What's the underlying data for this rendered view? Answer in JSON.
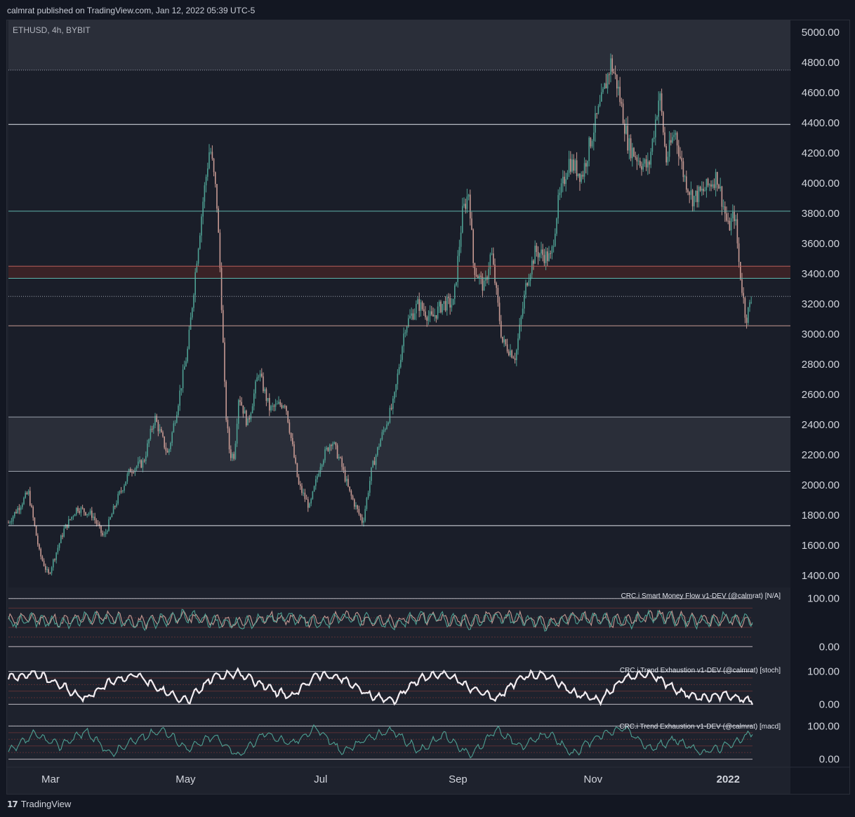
{
  "header": {
    "published": "calmrat published on TradingView.com, Jan 12, 2022 05:39 UTC-5"
  },
  "footer": {
    "brand": "TradingView",
    "logo": "tv-logo-icon"
  },
  "colors": {
    "background": "#131722",
    "pane": "#1e222d",
    "up_candle": "#4e9f92",
    "down_candle": "#c79a93",
    "level_white": "#e0e3eb",
    "level_teal": "#5fb3aa",
    "level_red": "#b85c58",
    "stoch_line": "#f3eef2",
    "macd_line": "#4e9f92"
  },
  "chart_data": [
    {
      "type": "candlestick",
      "symbol_label": "ETHUSD, 4h, BYBIT",
      "x_ticks": [
        "Mar",
        "May",
        "Jul",
        "Sep",
        "Nov",
        "2022"
      ],
      "y_ticks": [
        "5000.00",
        "4800.00",
        "4600.00",
        "4400.00",
        "4200.00",
        "4000.00",
        "3800.00",
        "3600.00",
        "3400.00",
        "3200.00",
        "3000.00",
        "2800.00",
        "2600.00",
        "2400.00",
        "2200.00",
        "2000.00",
        "1800.00",
        "1600.00",
        "1400.00"
      ],
      "y_tick_values": [
        5000,
        4800,
        4600,
        4400,
        4200,
        4000,
        3800,
        3600,
        3400,
        3200,
        3000,
        2800,
        2600,
        2400,
        2200,
        2000,
        1800,
        1600,
        1400
      ],
      "ylim": [
        1320,
        5080
      ],
      "price_path": [
        {
          "d": "2021-02-10",
          "p": 1750
        },
        {
          "d": "2021-02-19",
          "p": 1950
        },
        {
          "d": "2021-02-24",
          "p": 1550
        },
        {
          "d": "2021-02-28",
          "p": 1400
        },
        {
          "d": "2021-03-07",
          "p": 1700
        },
        {
          "d": "2021-03-13",
          "p": 1850
        },
        {
          "d": "2021-03-20",
          "p": 1800
        },
        {
          "d": "2021-03-25",
          "p": 1650
        },
        {
          "d": "2021-03-31",
          "p": 1900
        },
        {
          "d": "2021-04-06",
          "p": 2100
        },
        {
          "d": "2021-04-12",
          "p": 2150
        },
        {
          "d": "2021-04-17",
          "p": 2450
        },
        {
          "d": "2021-04-23",
          "p": 2200
        },
        {
          "d": "2021-04-27",
          "p": 2500
        },
        {
          "d": "2021-05-02",
          "p": 2900
        },
        {
          "d": "2021-05-06",
          "p": 3500
        },
        {
          "d": "2021-05-09",
          "p": 3900
        },
        {
          "d": "2021-05-12",
          "p": 4250
        },
        {
          "d": "2021-05-15",
          "p": 3900
        },
        {
          "d": "2021-05-17",
          "p": 3300
        },
        {
          "d": "2021-05-19",
          "p": 2500
        },
        {
          "d": "2021-05-21",
          "p": 2200
        },
        {
          "d": "2021-05-23",
          "p": 2200
        },
        {
          "d": "2021-05-25",
          "p": 2600
        },
        {
          "d": "2021-05-29",
          "p": 2400
        },
        {
          "d": "2021-06-03",
          "p": 2750
        },
        {
          "d": "2021-06-08",
          "p": 2500
        },
        {
          "d": "2021-06-15",
          "p": 2550
        },
        {
          "d": "2021-06-21",
          "p": 2000
        },
        {
          "d": "2021-06-26",
          "p": 1850
        },
        {
          "d": "2021-07-01",
          "p": 2150
        },
        {
          "d": "2021-07-06",
          "p": 2300
        },
        {
          "d": "2021-07-10",
          "p": 2150
        },
        {
          "d": "2021-07-14",
          "p": 1950
        },
        {
          "d": "2021-07-20",
          "p": 1750
        },
        {
          "d": "2021-07-24",
          "p": 2100
        },
        {
          "d": "2021-07-28",
          "p": 2300
        },
        {
          "d": "2021-08-03",
          "p": 2550
        },
        {
          "d": "2021-08-08",
          "p": 3050
        },
        {
          "d": "2021-08-14",
          "p": 3200
        },
        {
          "d": "2021-08-20",
          "p": 3100
        },
        {
          "d": "2021-08-25",
          "p": 3200
        },
        {
          "d": "2021-08-30",
          "p": 3200
        },
        {
          "d": "2021-09-03",
          "p": 3800
        },
        {
          "d": "2021-09-06",
          "p": 3950
        },
        {
          "d": "2021-09-08",
          "p": 3450
        },
        {
          "d": "2021-09-13",
          "p": 3300
        },
        {
          "d": "2021-09-16",
          "p": 3550
        },
        {
          "d": "2021-09-21",
          "p": 2950
        },
        {
          "d": "2021-09-27",
          "p": 2850
        },
        {
          "d": "2021-10-02",
          "p": 3350
        },
        {
          "d": "2021-10-06",
          "p": 3550
        },
        {
          "d": "2021-10-13",
          "p": 3500
        },
        {
          "d": "2021-10-16",
          "p": 3850
        },
        {
          "d": "2021-10-21",
          "p": 4150
        },
        {
          "d": "2021-10-27",
          "p": 4050
        },
        {
          "d": "2021-11-01",
          "p": 4350
        },
        {
          "d": "2021-11-05",
          "p": 4550
        },
        {
          "d": "2021-11-09",
          "p": 4800
        },
        {
          "d": "2021-11-12",
          "p": 4650
        },
        {
          "d": "2021-11-17",
          "p": 4250
        },
        {
          "d": "2021-11-22",
          "p": 4150
        },
        {
          "d": "2021-11-26",
          "p": 4100
        },
        {
          "d": "2021-12-01",
          "p": 4600
        },
        {
          "d": "2021-12-04",
          "p": 4150
        },
        {
          "d": "2021-12-08",
          "p": 4350
        },
        {
          "d": "2021-12-12",
          "p": 4050
        },
        {
          "d": "2021-12-16",
          "p": 3900
        },
        {
          "d": "2021-12-21",
          "p": 3950
        },
        {
          "d": "2021-12-27",
          "p": 4050
        },
        {
          "d": "2022-01-01",
          "p": 3700
        },
        {
          "d": "2022-01-04",
          "p": 3800
        },
        {
          "d": "2022-01-06",
          "p": 3450
        },
        {
          "d": "2022-01-09",
          "p": 3100
        },
        {
          "d": "2022-01-12",
          "p": 3250
        }
      ],
      "levels": [
        {
          "price": 4750,
          "color": "#9aa0ab",
          "style": "dotted"
        },
        {
          "price": 4390,
          "color": "#e0e3eb",
          "style": "solid"
        },
        {
          "price": 3815,
          "color": "#5fb3aa",
          "style": "solid"
        },
        {
          "price": 3450,
          "color": "#b85c58",
          "style": "solid"
        },
        {
          "price": 3370,
          "color": "#5fb3aa",
          "style": "solid"
        },
        {
          "price": 3250,
          "color": "#9aa0ab",
          "style": "dotted"
        },
        {
          "price": 3055,
          "color": "#c79a93",
          "style": "solid"
        },
        {
          "price": 2450,
          "color": "#9aa0ab",
          "style": "solid"
        },
        {
          "price": 2090,
          "color": "#9aa0ab",
          "style": "solid"
        },
        {
          "price": 1730,
          "color": "#e0e3eb",
          "style": "solid"
        }
      ],
      "zones": [
        {
          "from": 4750,
          "to": 5080,
          "color": "#2a2e39"
        },
        {
          "from": 3370,
          "to": 3450,
          "color": "#3a2226"
        },
        {
          "from": 2090,
          "to": 2450,
          "color": "#2a2e39"
        }
      ]
    },
    {
      "type": "line",
      "label": "CRC.i Smart Money Flow v1-DEV (@calmrat) [N/A]",
      "y_ticks": [
        "100.00",
        "0.00"
      ],
      "y_tick_values": [
        100,
        0
      ],
      "ylim": [
        -20,
        120
      ],
      "series": [
        {
          "color": "#c79a93",
          "values": [
            55,
            60,
            52,
            58,
            63,
            50,
            57,
            62,
            55,
            48,
            60,
            58,
            52,
            64,
            57,
            50,
            61,
            59,
            53,
            66,
            58,
            49,
            62,
            56,
            51,
            65,
            60,
            54,
            58,
            52
          ]
        },
        {
          "color": "#4e9f92",
          "values": [
            50,
            56,
            48,
            60,
            58,
            46,
            55,
            65,
            52,
            45,
            58,
            62,
            48,
            60,
            55,
            44,
            63,
            57,
            50,
            62,
            56,
            46,
            60,
            58,
            48,
            62,
            57,
            50,
            60,
            55
          ]
        }
      ]
    },
    {
      "type": "line",
      "label": "CRC.i Trend Exhaustion v1-DEV (@calmrat) [stoch]",
      "y_ticks": [
        "100.00",
        "0.00"
      ],
      "y_tick_values": [
        100,
        0
      ],
      "ylim": [
        -25,
        125
      ],
      "series": [
        {
          "color": "#f3eef2",
          "values": [
            80,
            95,
            60,
            15,
            70,
            90,
            40,
            10,
            85,
            95,
            55,
            20,
            90,
            80,
            30,
            10,
            75,
            95,
            50,
            15,
            85,
            90,
            35,
            10,
            80,
            95,
            45,
            15,
            30,
            10
          ]
        }
      ]
    },
    {
      "type": "line",
      "label": "CRC.i Trend Exhaustion v1-DEV (@calmrat) [macd]",
      "y_ticks": [
        "100.00",
        "0.00"
      ],
      "y_tick_values": [
        100,
        0
      ],
      "ylim": [
        -20,
        120
      ],
      "series": [
        {
          "color": "#4e9f92",
          "values": [
            20,
            75,
            40,
            85,
            15,
            60,
            90,
            30,
            70,
            10,
            80,
            45,
            95,
            20,
            65,
            85,
            25,
            75,
            10,
            90,
            35,
            80,
            15,
            70,
            95,
            30,
            60,
            20,
            40,
            80
          ]
        }
      ]
    }
  ]
}
